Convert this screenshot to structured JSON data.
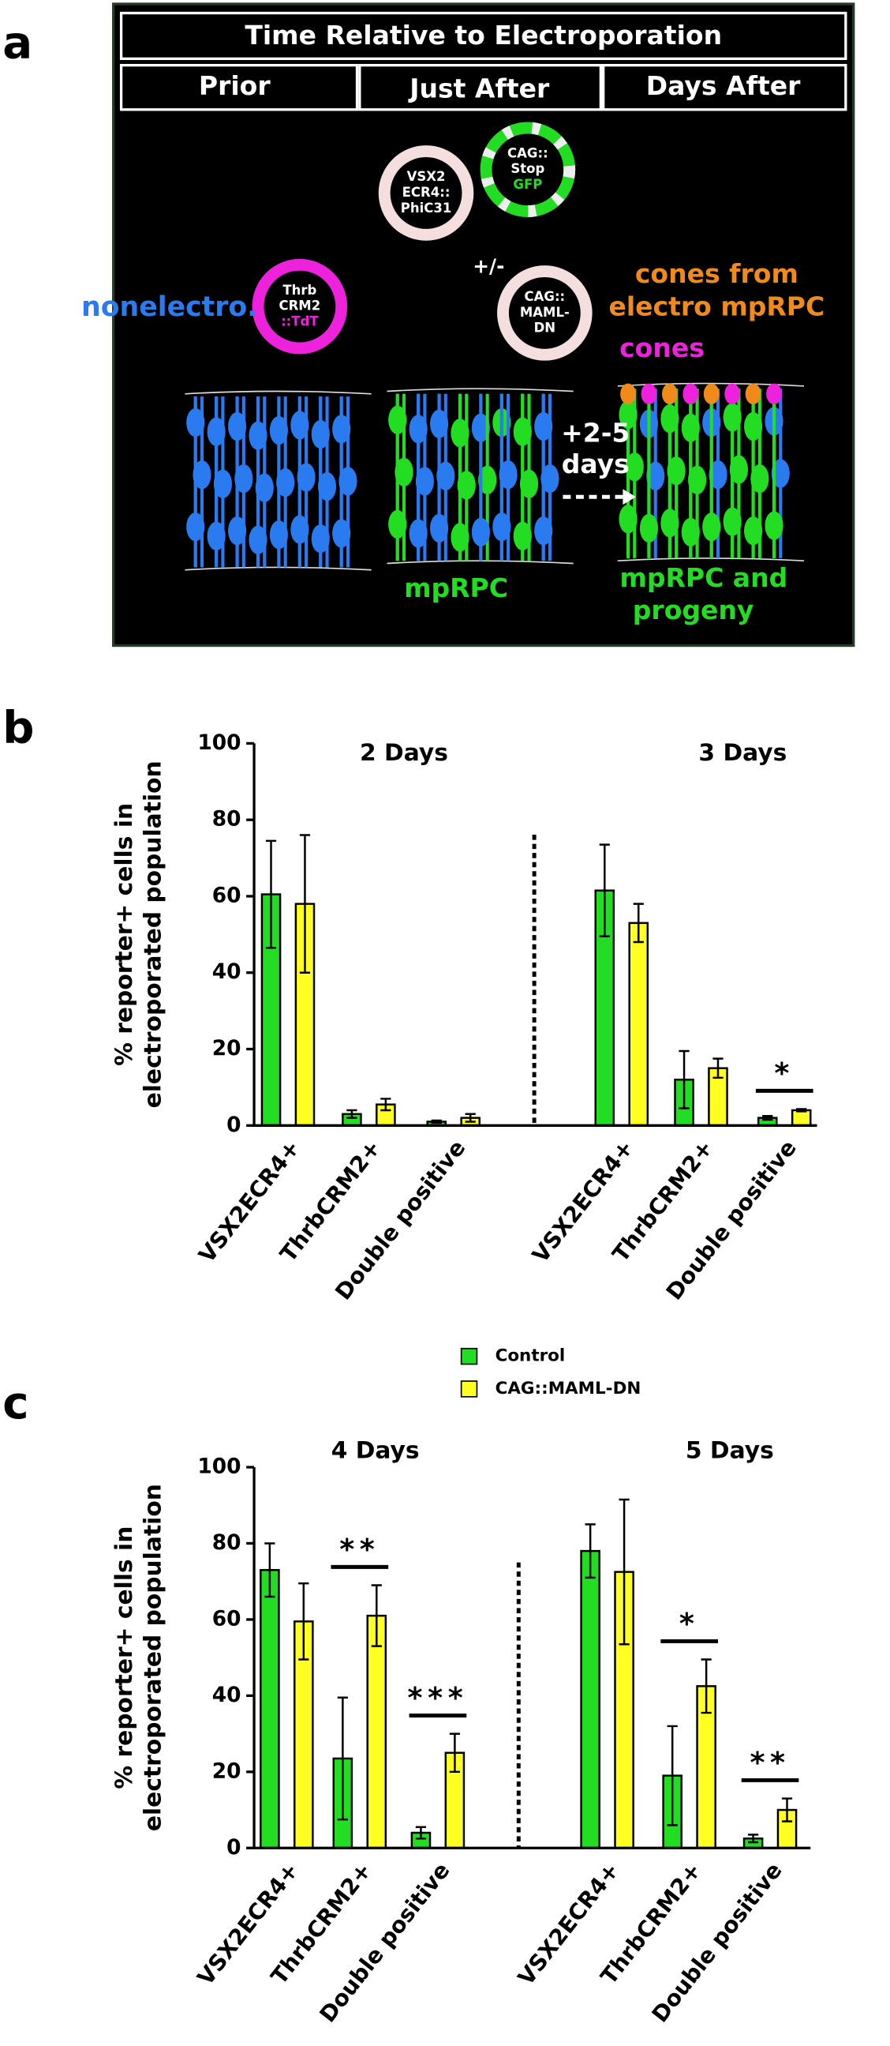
{
  "diagram": {
    "panel": "a",
    "header": "Time Relative to Electroporation",
    "columns": [
      "Prior",
      "Just After",
      "Days After"
    ],
    "plasmids": [
      [
        "VSX2",
        "ECR4::",
        "PhiC31"
      ],
      [
        "CAG::",
        "Stop",
        "GFP"
      ],
      [
        "Thrb",
        "CRM2",
        "::TdT"
      ],
      [
        "CAG::",
        "MAML-",
        "DN"
      ]
    ],
    "plus_minus": "+/-",
    "nonelectro": "nonelectro.",
    "cones_from": [
      "cones from",
      "electro mpRPC"
    ],
    "cones": "cones",
    "interval": [
      "+2-5",
      "days"
    ],
    "mprpc": "mpRPC",
    "progeny": [
      "mpRPC and",
      "progeny"
    ]
  },
  "chart_data": [
    {
      "type": "bar",
      "panel": "b",
      "facet_titles": [
        "2 Days",
        "3 Days"
      ],
      "ylabel": [
        "% reporter+ cells in",
        "electroporated population"
      ],
      "categories": [
        "VSX2ECR4+",
        "ThrbCRM2+",
        "Double positive",
        "VSX2ECR4+",
        "ThrbCRM2+",
        "Double positive"
      ],
      "series": [
        {
          "color": "#22dd22",
          "values": [
            60.5,
            3,
            1,
            61.5,
            12,
            2
          ],
          "errors": [
            14,
            1,
            0.3,
            12,
            7.5,
            0.5
          ]
        },
        {
          "color": "#ffff22",
          "values": [
            58,
            5.5,
            2,
            53,
            15,
            4
          ],
          "errors": [
            18,
            1.5,
            1,
            5,
            2.5,
            0.3
          ]
        }
      ],
      "significance": [
        null,
        null,
        null,
        null,
        null,
        "*"
      ],
      "ylim": [
        0,
        100
      ],
      "yticks": [
        0,
        20,
        40,
        60,
        80,
        100
      ]
    },
    {
      "type": "bar",
      "panel": "c",
      "facet_titles": [
        "4 Days",
        "5 Days"
      ],
      "ylabel": [
        "% reporter+ cells in",
        "electroporated population"
      ],
      "categories": [
        "VSX2ECR4+",
        "ThrbCRM2+",
        "Double positive",
        "VSX2ECR4+",
        "ThrbCRM2+",
        "Double positive"
      ],
      "series": [
        {
          "name": "Control",
          "color": "#22dd22",
          "values": [
            73,
            23.5,
            4,
            78,
            19,
            2.5
          ],
          "errors": [
            7,
            16,
            1.5,
            7,
            13,
            1
          ]
        },
        {
          "name": "CAG::MAML-DN",
          "color": "#ffff22",
          "values": [
            59.5,
            61,
            25,
            72.5,
            42.5,
            10
          ],
          "errors": [
            10,
            8,
            5,
            19,
            7,
            3
          ]
        }
      ],
      "significance": [
        null,
        "**",
        "***",
        null,
        "*",
        "**"
      ],
      "ylim": [
        0,
        100
      ],
      "yticks": [
        0,
        20,
        40,
        60,
        80,
        100
      ]
    }
  ]
}
